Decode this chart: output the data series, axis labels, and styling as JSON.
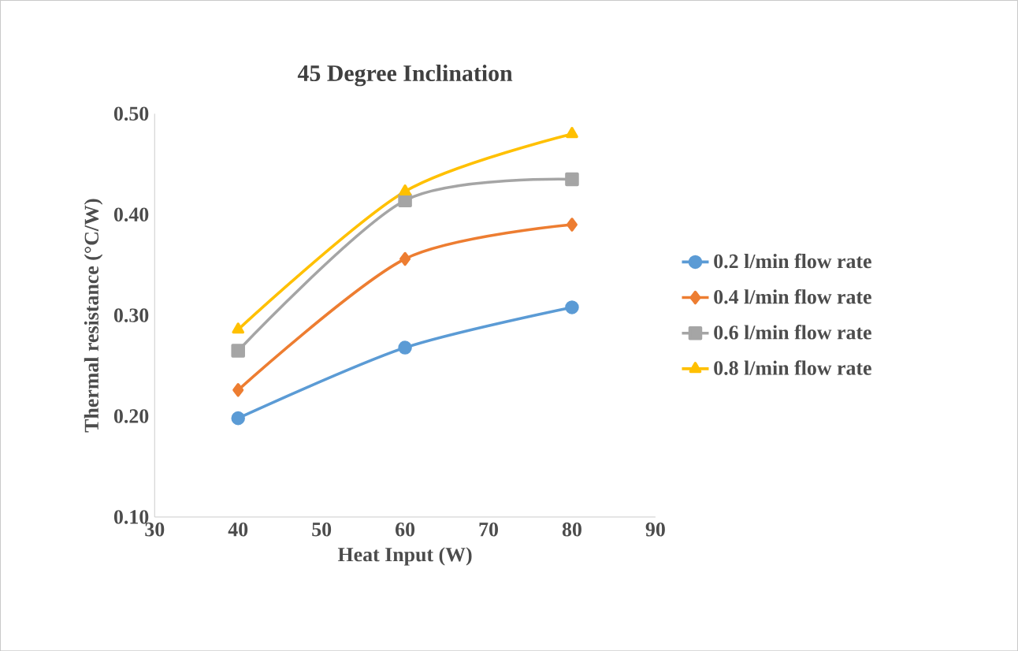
{
  "chart_data": {
    "type": "line",
    "title": "45 Degree Inclination",
    "xlabel": "Heat Input  (W)",
    "ylabel": "Thermal  resistance (°C/W)",
    "x": [
      40,
      60,
      80
    ],
    "xlim": [
      30,
      90
    ],
    "xticks": [
      30,
      40,
      50,
      60,
      70,
      80,
      90
    ],
    "ylim": [
      0.1,
      0.5
    ],
    "yticks": [
      {
        "value": 0.1,
        "label": "0.10"
      },
      {
        "value": 0.2,
        "label": "0.20"
      },
      {
        "value": 0.3,
        "label": "0.30"
      },
      {
        "value": 0.4,
        "label": "0.40"
      },
      {
        "value": 0.5,
        "label": "0.50"
      }
    ],
    "grid": false,
    "legend": "right",
    "line_style": "solid",
    "series": [
      {
        "name": "0.2 l/min flow rate",
        "color": "#5b9bd5",
        "marker": "circle",
        "values": [
          0.198,
          0.268,
          0.308
        ]
      },
      {
        "name": "0.4 l/min flow rate",
        "color": "#ed7d31",
        "marker": "diamond",
        "values": [
          0.226,
          0.356,
          0.39
        ]
      },
      {
        "name": "0.6 l/min flow rate",
        "color": "#a5a5a5",
        "marker": "square",
        "values": [
          0.265,
          0.414,
          0.435
        ]
      },
      {
        "name": "0.8 l/min flow rate",
        "color": "#ffc000",
        "marker": "triangle",
        "values": [
          0.286,
          0.423,
          0.48
        ]
      }
    ]
  }
}
